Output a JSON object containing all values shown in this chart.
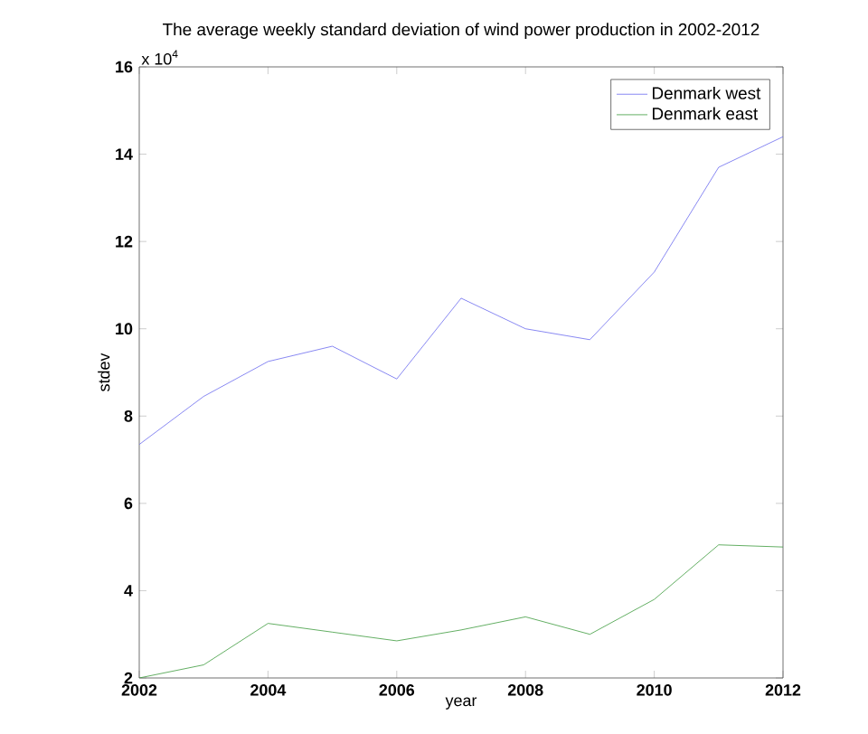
{
  "chart_data": {
    "type": "line",
    "title": "The average weekly standard deviation of wind power production in 2002-2012",
    "xlabel": "year",
    "ylabel": "stdev",
    "annotations": [
      "x 10$^{4}$"
    ],
    "x": [
      2002,
      2003,
      2004,
      2005,
      2006,
      2007,
      2008,
      2009,
      2010,
      2011,
      2012
    ],
    "series": [
      {
        "name": "Denmark west",
        "color": "#6b6bef",
        "values": [
          7.35,
          8.45,
          9.25,
          9.6,
          8.85,
          10.7,
          10.0,
          9.75,
          11.3,
          13.7,
          14.4
        ]
      },
      {
        "name": "Denmark east",
        "color": "#3c9a3c",
        "values": [
          2.0,
          2.3,
          3.25,
          3.05,
          2.85,
          3.1,
          3.4,
          3.0,
          3.8,
          5.05,
          5.0
        ]
      }
    ],
    "xlim": [
      2002,
      2012
    ],
    "ylim": [
      2,
      16
    ],
    "xticks": [
      2002,
      2004,
      2006,
      2008,
      2010,
      2012
    ],
    "yticks": [
      2,
      4,
      6,
      8,
      10,
      12,
      14,
      16
    ],
    "grid": false,
    "legend": "top right",
    "marker": "none",
    "line_style": "solid"
  }
}
